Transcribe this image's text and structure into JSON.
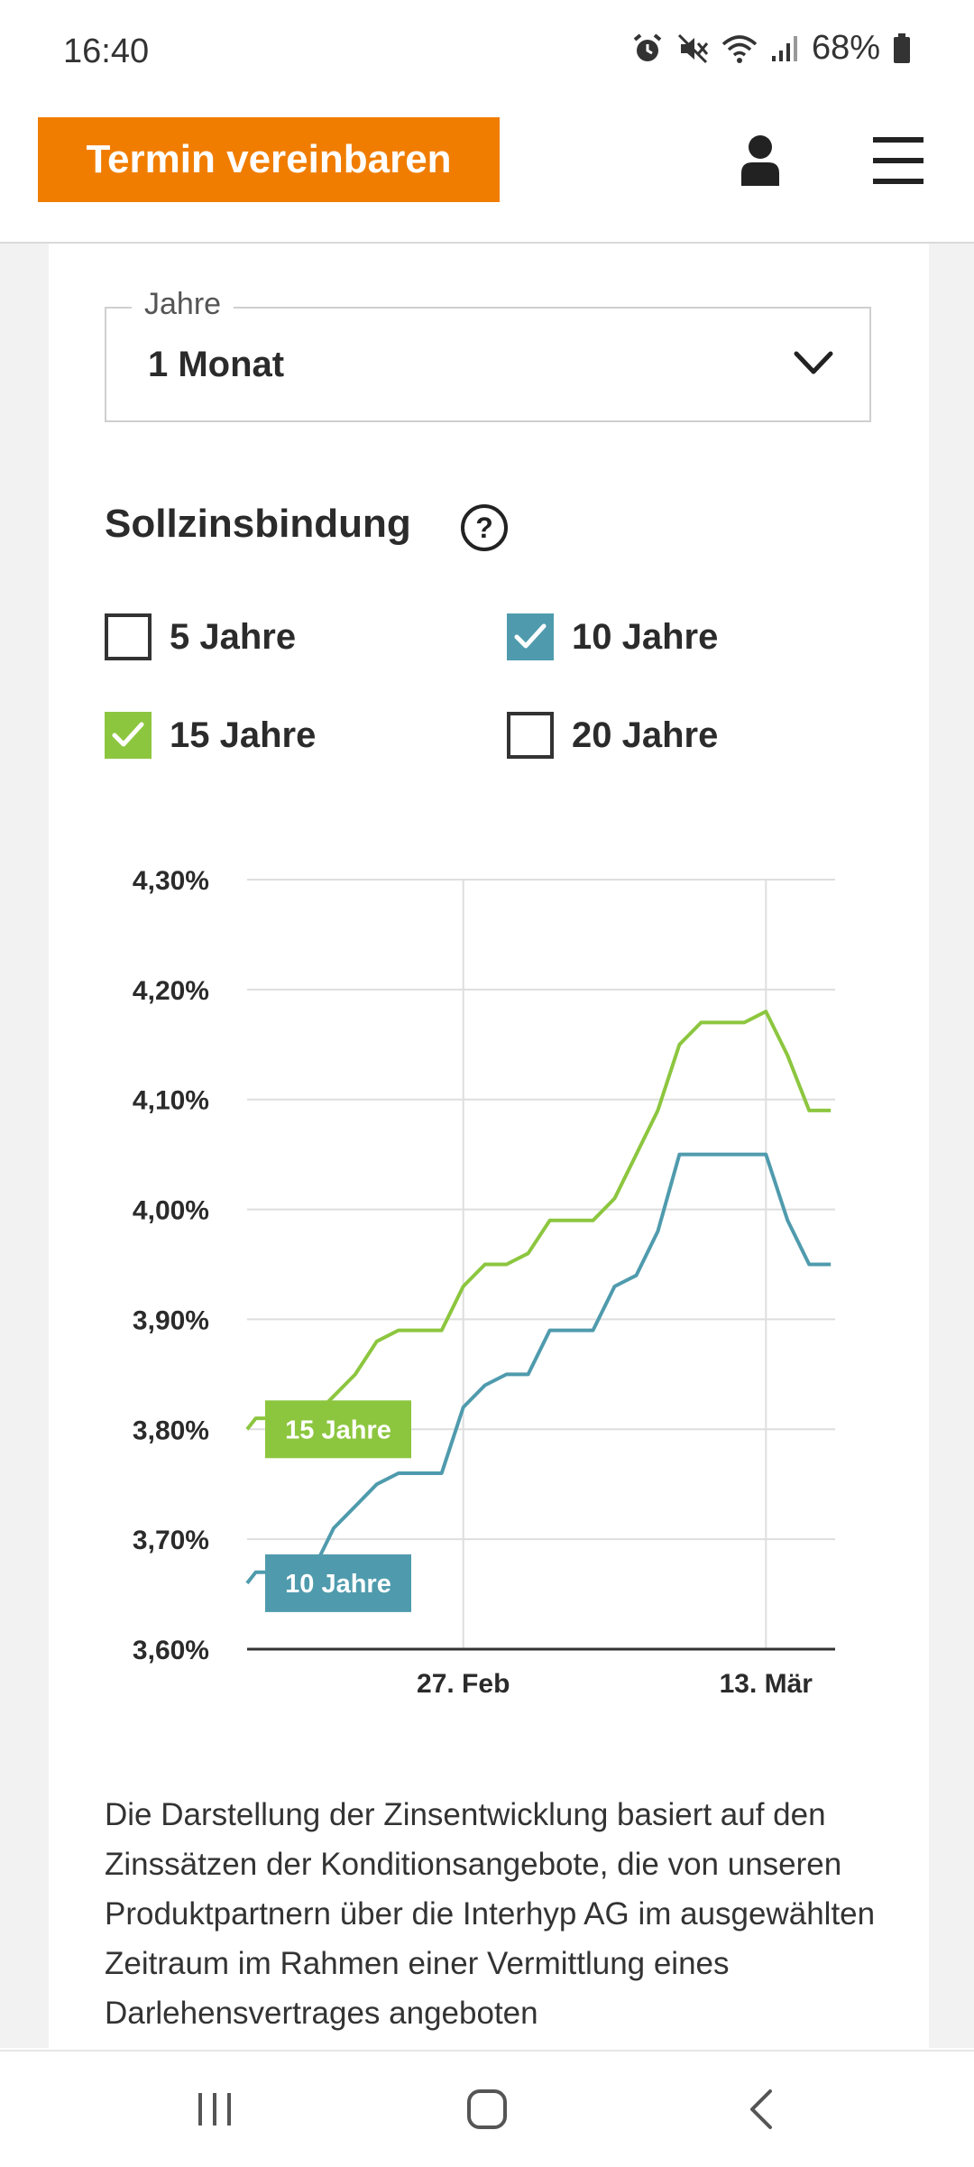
{
  "status_bar": {
    "time": "16:40",
    "battery": "68%",
    "icons": [
      "alarm-icon",
      "mute-icon",
      "wifi-icon",
      "signal-icon",
      "battery-icon"
    ]
  },
  "header": {
    "cta_label": "Termin vereinbaren",
    "cta_color": "#f07d00",
    "icons": [
      "user-icon",
      "hamburger-menu-icon"
    ]
  },
  "period_select": {
    "label": "Jahre",
    "value": "1 Monat"
  },
  "fixed_rate": {
    "title": "Sollzinsbindung",
    "options": [
      {
        "label": "5 Jahre",
        "checked": false,
        "color": "#333333"
      },
      {
        "label": "10 Jahre",
        "checked": true,
        "color": "#4f9bad"
      },
      {
        "label": "15 Jahre",
        "checked": true,
        "color": "#8cc63f"
      },
      {
        "label": "20 Jahre",
        "checked": false,
        "color": "#333333"
      }
    ]
  },
  "chart_data": {
    "type": "line",
    "y_ticks": [
      "4,30%",
      "4,20%",
      "4,10%",
      "4,00%",
      "3,90%",
      "3,80%",
      "3,70%",
      "3,60%"
    ],
    "x_ticks": [
      {
        "label": "27. Feb",
        "x": 10
      },
      {
        "label": "13. Mär",
        "x": 24
      }
    ],
    "xlim": [
      0,
      27.2
    ],
    "ylim": [
      3.6,
      4.3
    ],
    "grid": true,
    "series": [
      {
        "name": "15 Jahre",
        "color": "#8cc63f",
        "points": [
          [
            0,
            3.8
          ],
          [
            0.4,
            3.81
          ],
          [
            1,
            3.81
          ],
          [
            3,
            3.81
          ],
          [
            4,
            3.83
          ],
          [
            5,
            3.85
          ],
          [
            6,
            3.88
          ],
          [
            7,
            3.89
          ],
          [
            9,
            3.89
          ],
          [
            10,
            3.93
          ],
          [
            11,
            3.95
          ],
          [
            12,
            3.95
          ],
          [
            13,
            3.96
          ],
          [
            14,
            3.99
          ],
          [
            16,
            3.99
          ],
          [
            17,
            4.01
          ],
          [
            18,
            4.05
          ],
          [
            19,
            4.09
          ],
          [
            20,
            4.15
          ],
          [
            21,
            4.17
          ],
          [
            23,
            4.17
          ],
          [
            24,
            4.18
          ],
          [
            25,
            4.14
          ],
          [
            26,
            4.09
          ],
          [
            27,
            4.09
          ]
        ]
      },
      {
        "name": "10 Jahre",
        "color": "#4f9bad",
        "points": [
          [
            0,
            3.66
          ],
          [
            0.4,
            3.67
          ],
          [
            1,
            3.67
          ],
          [
            3,
            3.67
          ],
          [
            4,
            3.71
          ],
          [
            5,
            3.73
          ],
          [
            6,
            3.75
          ],
          [
            7,
            3.76
          ],
          [
            9,
            3.76
          ],
          [
            10,
            3.82
          ],
          [
            11,
            3.84
          ],
          [
            12,
            3.85
          ],
          [
            13,
            3.85
          ],
          [
            14,
            3.89
          ],
          [
            16,
            3.89
          ],
          [
            17,
            3.93
          ],
          [
            18,
            3.94
          ],
          [
            19,
            3.98
          ],
          [
            20,
            4.05
          ],
          [
            21,
            4.05
          ],
          [
            24,
            4.05
          ],
          [
            25,
            3.99
          ],
          [
            26,
            3.95
          ],
          [
            27,
            3.95
          ]
        ]
      }
    ]
  },
  "description": "Die Darstellung der Zinsentwicklung basiert auf den Zinssätzen der Konditionsangebote, die von unseren Produktpartnern über die Interhyp AG im ausgewählten Zeitraum im Rahmen einer Vermittlung eines Darlehensvertrages angeboten",
  "nav_bar": {
    "icons": [
      "recents-icon",
      "home-icon",
      "back-icon"
    ]
  }
}
